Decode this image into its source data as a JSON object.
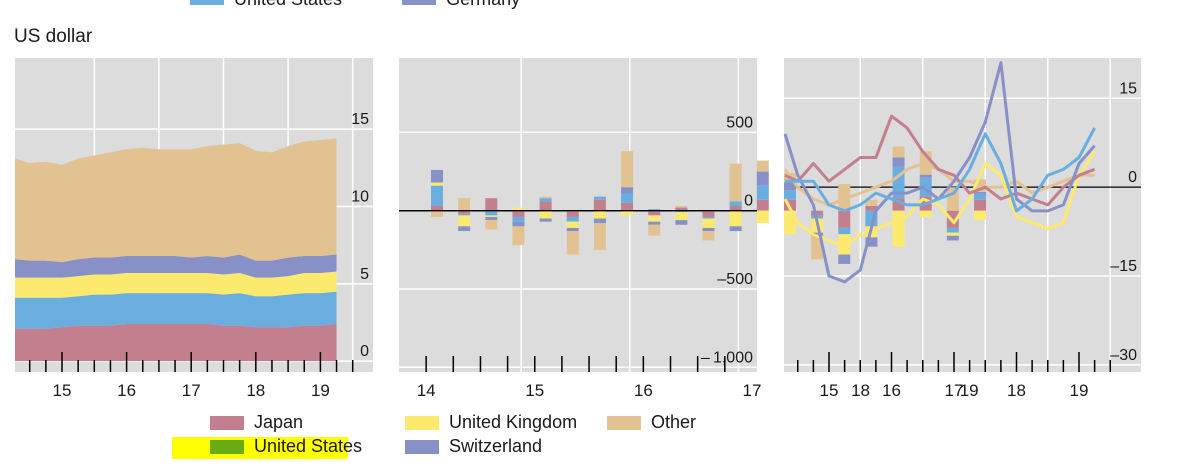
{
  "top_legend": [
    {
      "label": "United States",
      "color": "#6aaee0"
    },
    {
      "label": "Germany",
      "color": "#8791c8"
    }
  ],
  "page_title": "US dollar",
  "legend": [
    {
      "label": "Japan",
      "color": "#c47f8e"
    },
    {
      "label": "United Kingdom",
      "color": "#fbea6e"
    },
    {
      "label": "Other",
      "color": "#e3c291"
    },
    {
      "label": "United States",
      "color": "#6aaa14"
    },
    {
      "label": "Switzerland",
      "color": "#8791c8"
    }
  ],
  "chart_data": [
    {
      "type": "area",
      "title": "US dollar",
      "x": [
        2014.25,
        2014.5,
        2014.75,
        2015.0,
        2015.25,
        2015.5,
        2015.75,
        2016.0,
        2016.25,
        2016.5,
        2016.75,
        2017.0,
        2017.25,
        2017.5,
        2017.75,
        2018.0,
        2018.25,
        2018.5,
        2018.75,
        2019.0,
        2019.25
      ],
      "xticks": [
        "15",
        "16",
        "17",
        "18",
        "19"
      ],
      "yticks": [
        0,
        5,
        10,
        15
      ],
      "ylim": [
        -0.7,
        19.6
      ],
      "series": [
        {
          "name": "Japan",
          "color": "#c47f8e",
          "values": [
            2.1,
            2.1,
            2.1,
            2.2,
            2.3,
            2.3,
            2.3,
            2.4,
            2.4,
            2.4,
            2.4,
            2.4,
            2.4,
            2.3,
            2.3,
            2.2,
            2.2,
            2.2,
            2.3,
            2.3,
            2.4
          ]
        },
        {
          "name": "United States",
          "color": "#6aaee0",
          "values": [
            2.0,
            2.0,
            2.0,
            1.9,
            1.9,
            2.0,
            2.0,
            2.0,
            2.0,
            2.0,
            2.0,
            2.0,
            2.0,
            2.0,
            2.1,
            2.0,
            2.0,
            2.1,
            2.1,
            2.1,
            2.1
          ]
        },
        {
          "name": "United Kingdom",
          "color": "#fbea6e",
          "values": [
            1.3,
            1.3,
            1.3,
            1.3,
            1.3,
            1.3,
            1.3,
            1.3,
            1.3,
            1.3,
            1.3,
            1.3,
            1.3,
            1.3,
            1.3,
            1.2,
            1.2,
            1.2,
            1.3,
            1.3,
            1.3
          ]
        },
        {
          "name": "Switzerland",
          "color": "#8791c8",
          "values": [
            1.2,
            1.1,
            1.1,
            1.0,
            1.1,
            1.1,
            1.1,
            1.1,
            1.1,
            1.1,
            1.1,
            1.0,
            1.1,
            1.1,
            1.2,
            1.1,
            1.1,
            1.2,
            1.1,
            1.1,
            1.1
          ]
        },
        {
          "name": "Other",
          "color": "#e3c291",
          "values": [
            6.5,
            6.3,
            6.4,
            6.3,
            6.5,
            6.6,
            6.8,
            6.9,
            7.0,
            6.9,
            6.9,
            7.0,
            7.1,
            7.3,
            7.2,
            7.1,
            7.0,
            7.2,
            7.4,
            7.5,
            7.5
          ]
        }
      ]
    },
    {
      "type": "bar",
      "stacked": true,
      "x": [
        2014.1,
        2014.35,
        2014.6,
        2014.85,
        2015.1,
        2015.35,
        2015.6,
        2015.85,
        2016.1,
        2016.35,
        2016.6,
        2016.85,
        2017.1,
        2017.35,
        2017.6,
        2017.85,
        2018.1,
        2018.35,
        2018.6,
        2018.85,
        2019.1
      ],
      "xticks": [
        "14",
        "15",
        "16",
        "17",
        "18",
        "19"
      ],
      "yticks": [
        500,
        0,
        -500,
        -1000
      ],
      "ytick_labels": [
        "500",
        "0",
        "–500",
        "– 1,000"
      ],
      "ylim": [
        -1030,
        975
      ],
      "series": [
        {
          "name": "Japan",
          "color": "#c47f8e",
          "values": [
            30,
            -20,
            80,
            -40,
            60,
            -40,
            70,
            50,
            -30,
            20,
            -40,
            30,
            70,
            70,
            -30,
            -110,
            30,
            80,
            90,
            -110,
            70
          ]
        },
        {
          "name": "United States",
          "color": "#6aaee0",
          "values": [
            130,
            -10,
            -30,
            -30,
            20,
            -30,
            20,
            60,
            10,
            -10,
            -10,
            30,
            90,
            60,
            -20,
            -40,
            -100,
            200,
            120,
            -30,
            40
          ]
        },
        {
          "name": "United Kingdom",
          "color": "#fbea6e",
          "values": [
            20,
            -70,
            -10,
            20,
            -50,
            -40,
            -50,
            -30,
            -40,
            -50,
            -60,
            -100,
            -80,
            -150,
            -90,
            -130,
            -70,
            -230,
            -40,
            -20,
            -60
          ]
        },
        {
          "name": "Switzerland",
          "color": "#8791c8",
          "values": [
            80,
            -30,
            -20,
            -30,
            -20,
            -20,
            -30,
            40,
            -20,
            -30,
            -20,
            -30,
            90,
            50,
            -20,
            -60,
            -60,
            60,
            20,
            -30,
            10
          ]
        },
        {
          "name": "Other",
          "color": "#e3c291",
          "values": [
            -40,
            80,
            -60,
            -120,
            10,
            -150,
            -170,
            230,
            -70,
            10,
            -60,
            240,
            70,
            60,
            -150,
            170,
            40,
            70,
            150,
            150,
            80
          ]
        }
      ]
    },
    {
      "type": "line",
      "x": [
        2014.25,
        2014.5,
        2014.75,
        2015.0,
        2015.25,
        2015.5,
        2015.75,
        2016.0,
        2016.25,
        2016.5,
        2016.75,
        2017.0,
        2017.25,
        2017.5,
        2017.75,
        2018.0,
        2018.25,
        2018.5,
        2018.75,
        2019.0,
        2019.25
      ],
      "xticks": [
        "15",
        "16",
        "17",
        "18",
        "19"
      ],
      "yticks": [
        15,
        0,
        -15,
        -30
      ],
      "ytick_labels": [
        "15",
        "0",
        "–15",
        "–30"
      ],
      "ylim": [
        -31.2,
        21.8
      ],
      "series": [
        {
          "name": "Japan",
          "color": "#c47f8e",
          "values": [
            2,
            1,
            4,
            1,
            3,
            5,
            5,
            12,
            10,
            6,
            3,
            2,
            -1,
            0,
            -2,
            -1,
            -2,
            -3,
            0,
            2,
            3
          ]
        },
        {
          "name": "United States",
          "color": "#6aaee0",
          "values": [
            1,
            1,
            1,
            -3,
            -4,
            -3,
            -1,
            -2,
            -3,
            -3,
            -2,
            -1,
            3,
            9,
            4,
            -4,
            -2,
            2,
            3,
            5,
            10
          ]
        },
        {
          "name": "United Kingdom",
          "color": "#fbea6e",
          "values": [
            -2,
            -6,
            -8,
            -9,
            -10,
            -8,
            -7,
            -6,
            -5,
            -2,
            -3,
            -6,
            -2,
            4,
            2,
            -5,
            -6,
            -7,
            -6,
            2,
            6
          ]
        },
        {
          "name": "Switzerland",
          "color": "#8791c8",
          "values": [
            9,
            2,
            -3,
            -15,
            -16,
            -14,
            -4,
            -1,
            -1,
            0,
            -2,
            1,
            5,
            11,
            21,
            -2,
            -4,
            -4,
            -3,
            4,
            7
          ]
        },
        {
          "name": "Other",
          "color": "#e3c291",
          "values": [
            3,
            0,
            -2,
            -3,
            -2,
            -1,
            0,
            1,
            3,
            4,
            3,
            1,
            1,
            0,
            0,
            1,
            -1,
            0,
            1,
            2,
            2
          ]
        }
      ]
    }
  ]
}
